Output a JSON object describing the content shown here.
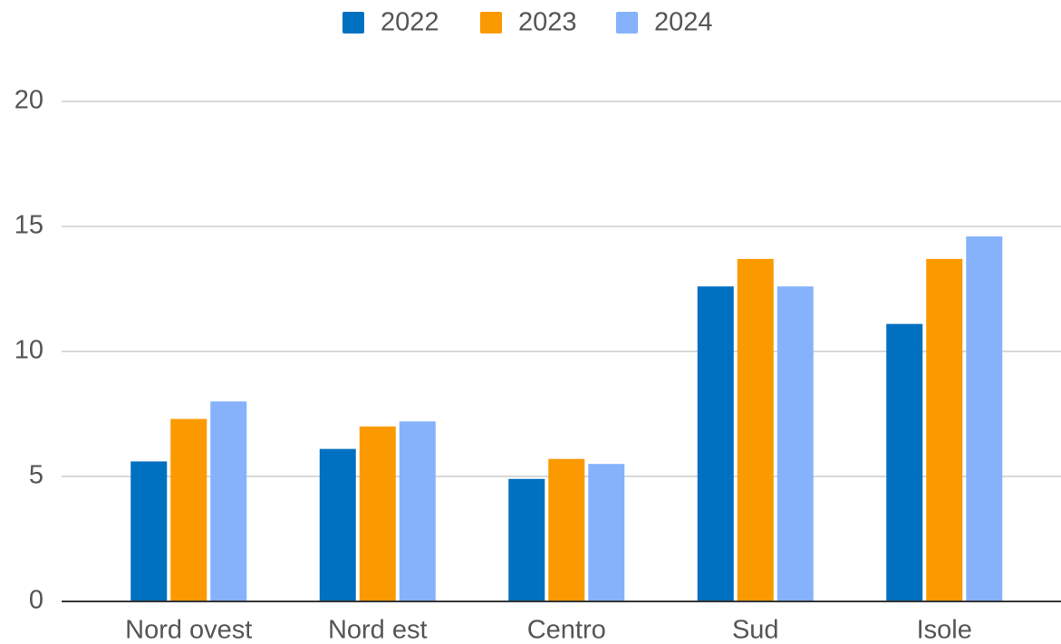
{
  "chart_data": {
    "type": "bar",
    "categories": [
      "Nord ovest",
      "Nord est",
      "Centro",
      "Sud",
      "Isole"
    ],
    "series": [
      {
        "name": "2022",
        "color": "#0070c0",
        "values": [
          5.6,
          6.1,
          4.9,
          12.6,
          11.1
        ]
      },
      {
        "name": "2023",
        "color": "#fb9a00",
        "values": [
          7.3,
          7.0,
          5.7,
          13.7,
          13.7
        ]
      },
      {
        "name": "2024",
        "color": "#86b2fc",
        "values": [
          8.0,
          7.2,
          5.5,
          12.6,
          14.6
        ]
      }
    ],
    "ylim": [
      0,
      20
    ],
    "yticks": [
      0,
      5,
      10,
      15,
      20
    ],
    "grid": true,
    "legend": "top"
  }
}
